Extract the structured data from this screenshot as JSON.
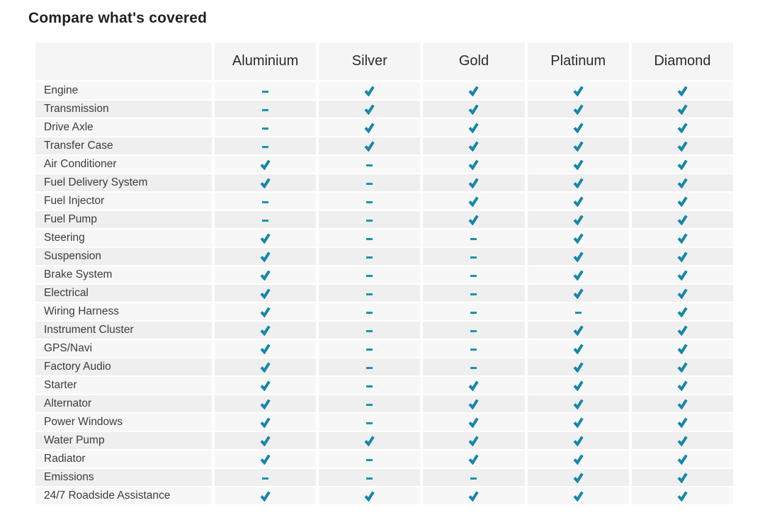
{
  "page": {
    "title": "Compare what's covered"
  },
  "table": {
    "corner_label": "",
    "columns": [
      "Aluminium",
      "Silver",
      "Gold",
      "Platinum",
      "Diamond"
    ],
    "rows": [
      {
        "label": "Engine",
        "coverage": [
          "dash",
          "check",
          "check",
          "check",
          "check"
        ]
      },
      {
        "label": "Transmission",
        "coverage": [
          "dash",
          "check",
          "check",
          "check",
          "check"
        ]
      },
      {
        "label": "Drive Axle",
        "coverage": [
          "dash",
          "check",
          "check",
          "check",
          "check"
        ]
      },
      {
        "label": "Transfer Case",
        "coverage": [
          "dash",
          "check",
          "check",
          "check",
          "check"
        ]
      },
      {
        "label": "Air Conditioner",
        "coverage": [
          "check",
          "dash",
          "check",
          "check",
          "check"
        ]
      },
      {
        "label": "Fuel Delivery System",
        "coverage": [
          "check",
          "dash",
          "check",
          "check",
          "check"
        ]
      },
      {
        "label": "Fuel Injector",
        "coverage": [
          "dash",
          "dash",
          "check",
          "check",
          "check"
        ]
      },
      {
        "label": "Fuel Pump",
        "coverage": [
          "dash",
          "dash",
          "check",
          "check",
          "check"
        ]
      },
      {
        "label": "Steering",
        "coverage": [
          "check",
          "dash",
          "dash",
          "check",
          "check"
        ]
      },
      {
        "label": "Suspension",
        "coverage": [
          "check",
          "dash",
          "dash",
          "check",
          "check"
        ]
      },
      {
        "label": "Brake System",
        "coverage": [
          "check",
          "dash",
          "dash",
          "check",
          "check"
        ]
      },
      {
        "label": "Electrical",
        "coverage": [
          "check",
          "dash",
          "dash",
          "check",
          "check"
        ]
      },
      {
        "label": "Wiring Harness",
        "coverage": [
          "check",
          "dash",
          "dash",
          "dash",
          "check"
        ]
      },
      {
        "label": "Instrument Cluster",
        "coverage": [
          "check",
          "dash",
          "dash",
          "check",
          "check"
        ]
      },
      {
        "label": "GPS/Navi",
        "coverage": [
          "check",
          "dash",
          "dash",
          "check",
          "check"
        ]
      },
      {
        "label": "Factory Audio",
        "coverage": [
          "check",
          "dash",
          "dash",
          "check",
          "check"
        ]
      },
      {
        "label": "Starter",
        "coverage": [
          "check",
          "dash",
          "check",
          "check",
          "check"
        ]
      },
      {
        "label": "Alternator",
        "coverage": [
          "check",
          "dash",
          "check",
          "check",
          "check"
        ]
      },
      {
        "label": "Power Windows",
        "coverage": [
          "check",
          "dash",
          "check",
          "check",
          "check"
        ]
      },
      {
        "label": "Water Pump",
        "coverage": [
          "check",
          "check",
          "check",
          "check",
          "check"
        ]
      },
      {
        "label": "Radiator",
        "coverage": [
          "check",
          "dash",
          "check",
          "check",
          "check"
        ]
      },
      {
        "label": "Emissions",
        "coverage": [
          "dash",
          "dash",
          "dash",
          "check",
          "check"
        ]
      },
      {
        "label": "24/7 Roadside Assistance",
        "coverage": [
          "check",
          "check",
          "check",
          "check",
          "check"
        ]
      }
    ]
  },
  "icons": {
    "covered": "check-icon",
    "not_covered": "dash-icon"
  },
  "colors": {
    "accent_teal": "#1487a8",
    "dash_teal": "#1a93b3",
    "header_bg": "#f5f5f5",
    "row_light": "#f7f7f7",
    "row_dark": "#efefef",
    "header_text": "#2b2b2b",
    "label_text": "#3c3c3c",
    "title_text": "#212121"
  }
}
